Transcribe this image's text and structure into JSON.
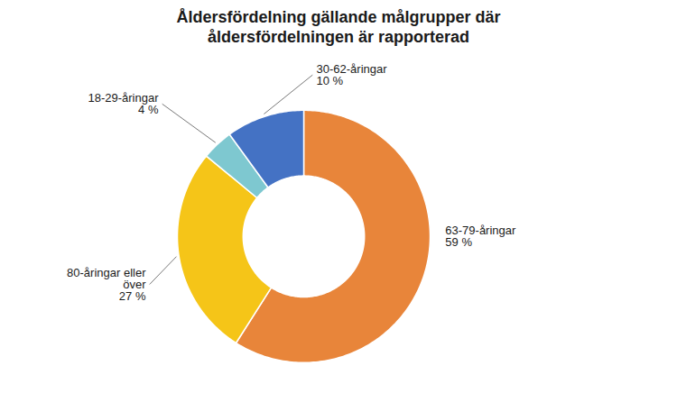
{
  "chart_data": {
    "type": "pie",
    "title": "Åldersfördelning gällande målgrupper där\nåldersfördelningen är rapporterad",
    "categories": [
      "63-79-åringar",
      "80-åringar eller\növer",
      "18-29-åringar",
      "30-62-åringar"
    ],
    "values": [
      59,
      27,
      4,
      10
    ],
    "value_labels": [
      "59 %",
      "27 %",
      "4 %",
      "10 %"
    ],
    "data_labels": true,
    "colors": [
      "#E8853A",
      "#F5C518",
      "#7EC8D0",
      "#4472C4"
    ]
  }
}
